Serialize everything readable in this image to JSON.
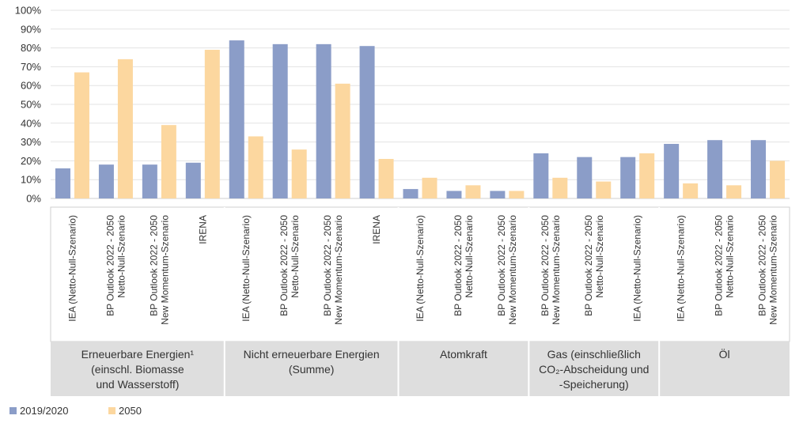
{
  "chart_data": {
    "type": "bar",
    "ylim": [
      0,
      100
    ],
    "y_ticks": [
      "0%",
      "10%",
      "20%",
      "30%",
      "40%",
      "50%",
      "60%",
      "70%",
      "80%",
      "90%",
      "100%"
    ],
    "colors": [
      "#8b9dc8",
      "#fcd79f"
    ],
    "legend": [
      "2019/2020",
      "2050"
    ],
    "groups": [
      {
        "label_lines": [
          "Erneuerbare Energien¹",
          "(einschl. Biomasse",
          "und Wasserstoff)"
        ],
        "categories": [
          [
            "IEA (Netto-Null-Szenario)"
          ],
          [
            "BP Outlook 2022 - 2050",
            "Netto-Null-Szenario"
          ],
          [
            "BP Outlook 2022 - 2050",
            "New Momentum-Szenario"
          ],
          [
            "IRENA"
          ]
        ],
        "series": [
          [
            16,
            18,
            18,
            19
          ],
          [
            67,
            74,
            39,
            79
          ]
        ]
      },
      {
        "label_lines": [
          "Nicht erneuerbare Energien",
          "(Summe)"
        ],
        "categories": [
          [
            "IEA (Netto-Null-Szenario)"
          ],
          [
            "BP Outlook 2022 - 2050",
            "Netto-Null-Szenario"
          ],
          [
            "BP Outlook 2022 - 2050",
            "New Momentum-Szenario"
          ],
          [
            "IRENA"
          ]
        ],
        "series": [
          [
            84,
            82,
            82,
            81
          ],
          [
            33,
            26,
            61,
            21
          ]
        ]
      },
      {
        "label_lines": [
          "Atomkraft"
        ],
        "categories": [
          [
            "IEA (Netto-Null-Szenario)"
          ],
          [
            "BP Outlook 2022 - 2050",
            "Netto-Null-Szenario"
          ],
          [
            "BP Outlook 2022 - 2050",
            "New Momentum-Szenario"
          ]
        ],
        "series": [
          [
            5,
            4,
            4
          ],
          [
            11,
            7,
            4
          ]
        ]
      },
      {
        "label_lines": [
          "Gas (einschließlich",
          "CO₂-Abscheidung und",
          "-Speicherung)"
        ],
        "categories": [
          [
            "BP Outlook 2022 - 2050",
            "New Momentum-Szenario"
          ],
          [
            "BP Outlook 2022 - 2050",
            "Netto-Null-Szenario"
          ],
          [
            "IEA (Netto-Null-Szenario)"
          ]
        ],
        "series": [
          [
            24,
            22,
            22
          ],
          [
            11,
            9,
            24
          ]
        ]
      },
      {
        "label_lines": [
          "Öl"
        ],
        "categories": [
          [
            "IEA (Netto-Null-Szenario)"
          ],
          [
            "BP Outlook 2022 - 2050",
            "Netto-Null-Szenario"
          ],
          [
            "BP Outlook 2022 - 2050",
            "New Momentum-Szenario"
          ]
        ],
        "series": [
          [
            29,
            31,
            31
          ],
          [
            8,
            7,
            20
          ]
        ]
      }
    ]
  }
}
